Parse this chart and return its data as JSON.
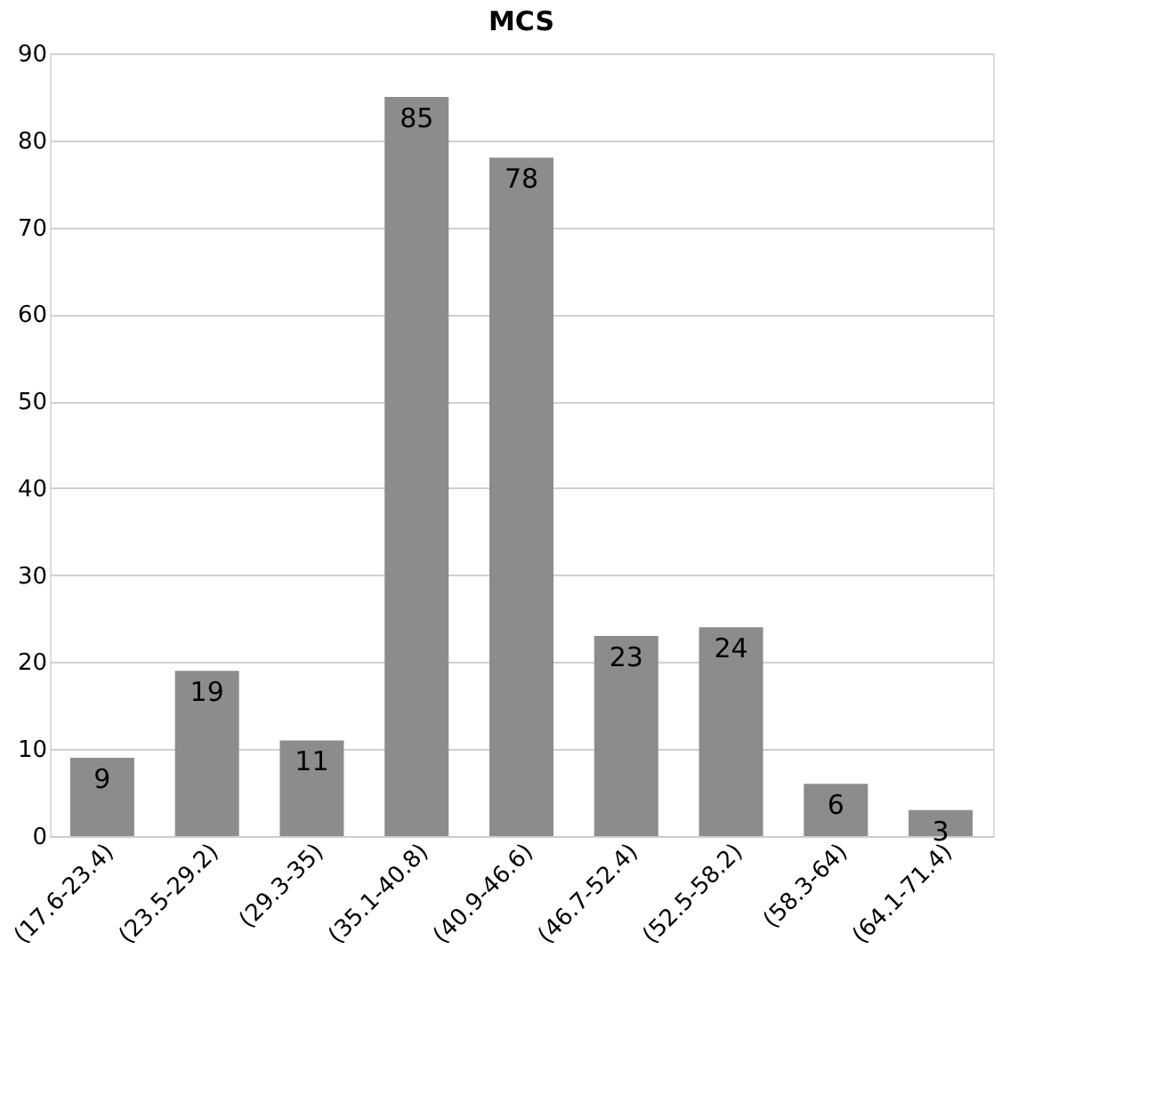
{
  "chart_data": {
    "type": "bar",
    "title": "MCS",
    "categories": [
      "(17.6-23.4)",
      "(23.5-29.2)",
      "(29.3-35)",
      "(35.1-40.8)",
      "(40.9-46.6)",
      "(46.7-52.4)",
      "(52.5-58.2)",
      "(58.3-64)",
      "(64.1-71.4)"
    ],
    "values": [
      9,
      19,
      11,
      85,
      78,
      23,
      24,
      6,
      3
    ],
    "color": "#8c8c8c",
    "ylim": [
      0,
      90
    ],
    "yticks": [
      0,
      10,
      20,
      30,
      40,
      50,
      60,
      70,
      80,
      90
    ],
    "grid": "y",
    "data_labels": true
  }
}
